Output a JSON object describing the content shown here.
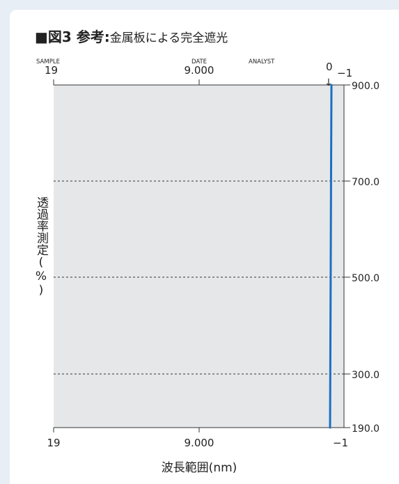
{
  "figure": {
    "title_main": "■図3 参考:",
    "title_sub": "金属板による完全遮光"
  },
  "chart_data": {
    "type": "line",
    "ylabel": "透過率測定(%)",
    "xlabel": "波長範囲(nm)",
    "top_labels": [
      {
        "caption": "SAMPLE",
        "value": "19"
      },
      {
        "caption": "DATE",
        "value": "9.000"
      },
      {
        "caption": "ANALYST",
        "value": ""
      }
    ],
    "top_right": {
      "zero": "0",
      "right": "−1"
    },
    "x_tick_labels": [
      "19",
      "9.000",
      "−1"
    ],
    "y_tick_labels": [
      "900.0",
      "700.0",
      "500.0",
      "300.0",
      "190.0"
    ],
    "grid": "dashed horizontal",
    "plot_background": "#e6e7e9",
    "line_color": "#1a6fc4",
    "series": [
      {
        "values": [
          {
            "x": -1,
            "y": 900.0
          },
          {
            "x": -1,
            "y": 700.0
          },
          {
            "x": -1,
            "y": 500.0
          },
          {
            "x": -1,
            "y": 300.0
          },
          {
            "x": -1,
            "y": 190.0
          }
        ]
      }
    ],
    "annotation": "↓"
  }
}
